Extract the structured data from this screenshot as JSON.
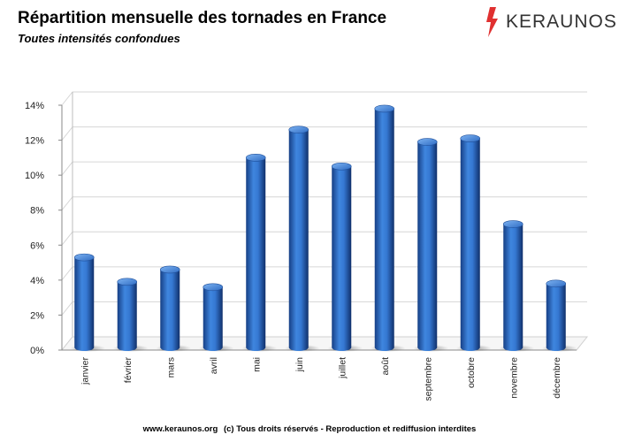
{
  "title": "Répartition mensuelle des tornades en France",
  "subtitle": "Toutes intensités confondues",
  "brand": {
    "name": "KERAUNOS",
    "icon": "lightning-bolt-icon",
    "color": "#e03030"
  },
  "footer": {
    "site": "www.keraunos.org",
    "rights": "(c) Tous droits réservés - Reproduction et rediffusion interdites"
  },
  "chart_data": {
    "type": "bar",
    "title": "Répartition mensuelle des tornades en France",
    "subtitle": "Toutes intensités confondues",
    "categories": [
      "janvier",
      "février",
      "mars",
      "avril",
      "mai",
      "juin",
      "juillet",
      "août",
      "septembre",
      "octobre",
      "novembre",
      "décembre"
    ],
    "values": [
      5.3,
      3.9,
      4.6,
      3.6,
      11.0,
      12.6,
      10.5,
      13.8,
      11.9,
      12.1,
      7.2,
      3.8
    ],
    "unit": "%",
    "yticks": [
      "0%",
      "2%",
      "4%",
      "6%",
      "8%",
      "10%",
      "12%",
      "14%"
    ],
    "ylim": [
      0,
      14
    ],
    "grid": true,
    "legend": "none",
    "bar_color": "#2e6fc9"
  }
}
